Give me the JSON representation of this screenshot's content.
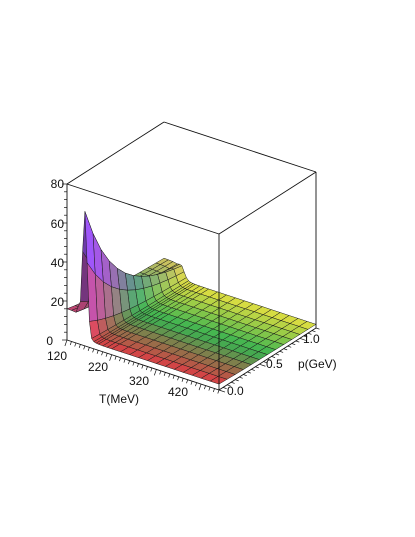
{
  "chart_data": {
    "type": "surface3d",
    "title": "",
    "zlabel": "",
    "xlabel": "T(MeV)",
    "ylabel": "p(GeV)",
    "z_ticks": [
      "0",
      "20",
      "40",
      "60",
      "80"
    ],
    "x_ticks": [
      "120",
      "220",
      "320",
      "420"
    ],
    "y_ticks": [
      "0.0",
      "0.5",
      "1.0"
    ],
    "zlim": [
      0,
      80
    ],
    "xlim": [
      120,
      460
    ],
    "ylim": [
      0,
      1.2
    ],
    "T_grid": [
      120,
      130,
      140,
      150,
      155,
      160,
      165,
      170,
      175,
      180,
      185,
      190,
      200,
      210,
      220,
      240,
      260,
      280,
      300,
      320,
      340,
      360,
      380,
      400,
      420,
      440,
      460
    ],
    "p_grid": [
      0.0,
      0.1,
      0.2,
      0.3,
      0.4,
      0.5,
      0.6,
      0.7,
      0.8,
      0.9,
      1.0,
      1.1,
      1.2
    ],
    "peak": {
      "T": 160,
      "p": 0.0,
      "value": 68
    },
    "low_T_plateau": 16,
    "high_T_plateau": 3,
    "colors": {
      "low": "#e63a3a",
      "peak": "#8a4bd9",
      "mid_p": "#33b84a",
      "high_p": "#e8e63a"
    }
  }
}
